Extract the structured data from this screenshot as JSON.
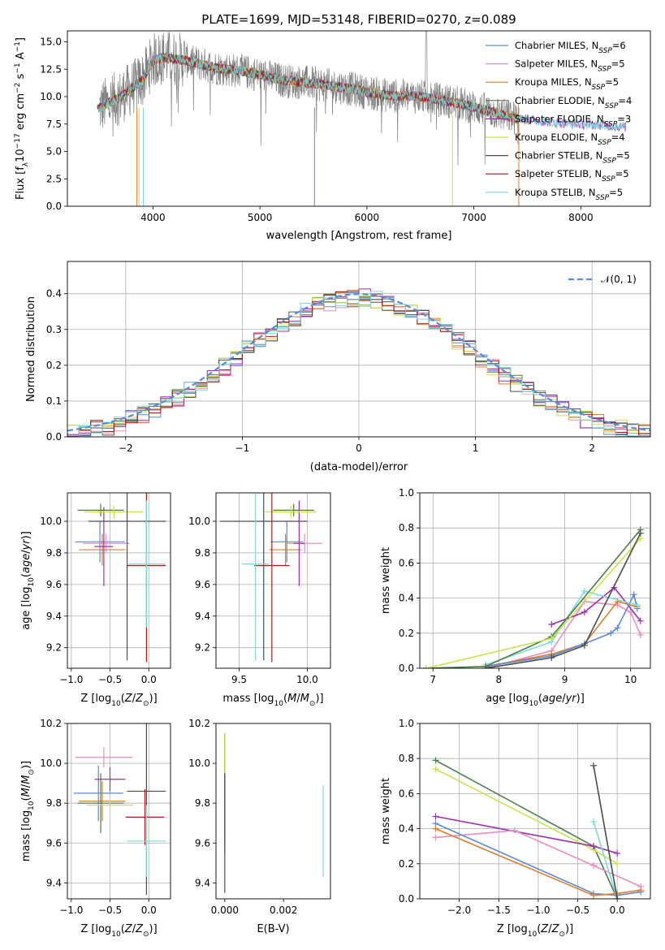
{
  "chart_data": [
    {
      "id": "spectrum",
      "type": "line",
      "title": "PLATE=1699, MJD=53148, FIBERID=0270, z=0.089",
      "xlabel": "wavelength [Angstrom, rest frame]",
      "ylabel": "Flux [f_λ 10^-17 erg cm^-2 s^-1 A^-1]",
      "xlim": [
        3200,
        8650
      ],
      "ylim": [
        0,
        16
      ],
      "xticks": [
        4000,
        5000,
        6000,
        7000,
        8000
      ],
      "yticks": [
        0.0,
        2.5,
        5.0,
        7.5,
        10.0,
        12.5,
        15.0
      ],
      "legend_position": "top-right",
      "data_color": "#808080",
      "continuum": {
        "x": [
          3500,
          3700,
          3900,
          4000,
          4100,
          4300,
          4600,
          4900,
          5000,
          5200,
          5500,
          5800,
          6000,
          6200,
          6500,
          6800,
          7100,
          7400,
          7800,
          8200,
          8400
        ],
        "y": [
          9.0,
          10.0,
          11.5,
          13.3,
          13.6,
          13.3,
          12.6,
          12.2,
          12.0,
          11.5,
          11.2,
          10.8,
          10.4,
          10.1,
          10.0,
          9.5,
          8.8,
          8.0,
          7.6,
          7.4,
          7.2
        ]
      },
      "series": [
        {
          "name": "Chabrier MILES, N_SSP=6",
          "color": "#5b8ad6"
        },
        {
          "name": "Salpeter MILES, N_SSP=5",
          "color": "#e88ec0"
        },
        {
          "name": "Kroupa MILES, N_SSP=5",
          "color": "#e07d2a"
        },
        {
          "name": "Chabrier ELODIE, N_SSP=4",
          "color": "#4a7f4a"
        },
        {
          "name": "Salpeter ELODIE, N_SSP=3",
          "color": "#9b30b0"
        },
        {
          "name": "Kroupa ELODIE, N_SSP=4",
          "color": "#c8e44a"
        },
        {
          "name": "Chabrier STELIB, N_SSP=5",
          "color": "#4d4d4d"
        },
        {
          "name": "Salpeter STELIB, N_SSP=5",
          "color": "#b01818"
        },
        {
          "name": "Kroupa STELIB, N_SSP=5",
          "color": "#7fd8d8"
        }
      ]
    },
    {
      "id": "residuals",
      "type": "line",
      "xlabel": "(data-model)/error",
      "ylabel": "Normed distribution",
      "xlim": [
        -2.5,
        2.5
      ],
      "ylim": [
        0,
        0.49
      ],
      "xticks": [
        -2,
        -1,
        0,
        1,
        2
      ],
      "yticks": [
        0.0,
        0.1,
        0.2,
        0.3,
        0.4
      ],
      "grid": true,
      "legend_position": "top-right",
      "reference": {
        "name": "𝒩(0, 1)",
        "color": "#5b8ad6",
        "style": "dashed"
      },
      "bin_width": 0.1,
      "series_colors": [
        "#5b8ad6",
        "#e88ec0",
        "#e07d2a",
        "#4a7f4a",
        "#9b30b0",
        "#c8e44a",
        "#4d4d4d",
        "#b01818",
        "#7fd8d8"
      ]
    },
    {
      "id": "z-age",
      "type": "scatter",
      "xlabel": "Z [log10(Z/Z☉)]",
      "ylabel": "age  [log10(age/yr)]",
      "xlim": [
        -1.05,
        0.28
      ],
      "ylim": [
        9.07,
        10.18
      ],
      "xticks": [
        -1.0,
        -0.5,
        0.0
      ],
      "yticks": [
        9.2,
        9.4,
        9.6,
        9.8,
        10.0
      ],
      "grid": true,
      "points": [
        {
          "x": -0.63,
          "y": 9.87,
          "xerr": 0.32,
          "yerr": 0.13,
          "color": "#5b8ad6"
        },
        {
          "x": -0.55,
          "y": 9.86,
          "xerr": 0.3,
          "yerr": 0.06,
          "color": "#e88ec0"
        },
        {
          "x": -0.6,
          "y": 9.82,
          "xerr": 0.3,
          "yerr": 0.1,
          "color": "#e07d2a"
        },
        {
          "x": -0.62,
          "y": 10.07,
          "xerr": 0.3,
          "yerr": 0.04,
          "color": "#4a7f4a"
        },
        {
          "x": -0.58,
          "y": 9.84,
          "xerr": 0.12,
          "yerr": 0.25,
          "color": "#9b30b0"
        },
        {
          "x": -0.45,
          "y": 10.06,
          "xerr": 0.38,
          "yerr": 0.04,
          "color": "#c8e44a"
        },
        {
          "x": -0.28,
          "y": 10.0,
          "xerr": 0.5,
          "yerr": 0.88,
          "color": "#4d4d4d"
        },
        {
          "x": -0.03,
          "y": 9.72,
          "xerr": 0.25,
          "yerr": 0.61,
          "color": "#b01818"
        },
        {
          "x": -0.03,
          "y": 9.73,
          "xerr": 0.25,
          "yerr": 0.4,
          "color": "#7fd8d8"
        }
      ]
    },
    {
      "id": "mass-age",
      "type": "scatter",
      "xlabel": "mass [log10(M/M☉)]",
      "ylabel": "",
      "xlim": [
        9.33,
        10.17
      ],
      "ylim": [
        9.07,
        10.18
      ],
      "xticks": [
        9.5,
        10.0
      ],
      "yticks": [
        9.2,
        9.4,
        9.6,
        9.8,
        10.0
      ],
      "grid": true,
      "points": [
        {
          "x": 9.85,
          "y": 9.87,
          "xerr": 0.12,
          "yerr": 0.13,
          "color": "#5b8ad6"
        },
        {
          "x": 9.98,
          "y": 9.86,
          "xerr": 0.13,
          "yerr": 0.06,
          "color": "#e88ec0"
        },
        {
          "x": 9.84,
          "y": 9.82,
          "xerr": 0.12,
          "yerr": 0.1,
          "color": "#e07d2a"
        },
        {
          "x": 9.9,
          "y": 10.07,
          "xerr": 0.15,
          "yerr": 0.04,
          "color": "#4a7f4a"
        },
        {
          "x": 9.94,
          "y": 9.86,
          "xerr": 0.04,
          "yerr": 0.27,
          "color": "#9b30b0"
        },
        {
          "x": 9.88,
          "y": 10.06,
          "xerr": 0.19,
          "yerr": 0.04,
          "color": "#c8e44a"
        },
        {
          "x": 9.68,
          "y": 10.0,
          "xerr": 0.32,
          "yerr": 0.88,
          "color": "#4d4d4d"
        },
        {
          "x": 9.74,
          "y": 9.72,
          "xerr": 0.13,
          "yerr": 0.61,
          "color": "#b01818"
        },
        {
          "x": 9.62,
          "y": 9.73,
          "xerr": 0.1,
          "yerr": 0.61,
          "color": "#7fd8d8"
        }
      ]
    },
    {
      "id": "age-weight",
      "type": "line",
      "xlabel": "age  [log10(age/yr)]",
      "ylabel": "mass weight",
      "xlim": [
        6.8,
        10.3
      ],
      "ylim": [
        0,
        1.0
      ],
      "xticks": [
        7,
        8,
        9,
        10
      ],
      "yticks": [
        0.0,
        0.2,
        0.4,
        0.6,
        0.8,
        1.0
      ],
      "grid": true,
      "series": [
        {
          "color": "#e88ec0",
          "x": [
            7.8,
            8.8,
            9.3,
            9.8,
            10.0,
            10.15
          ],
          "y": [
            0.0,
            0.1,
            0.38,
            0.36,
            0.32,
            0.19
          ]
        },
        {
          "color": "#9b30b0",
          "x": [
            8.8,
            9.3,
            9.75,
            10.15
          ],
          "y": [
            0.25,
            0.32,
            0.46,
            0.27
          ]
        },
        {
          "color": "#e07d2a",
          "x": [
            7.8,
            8.8,
            9.3,
            9.8,
            10.1
          ],
          "y": [
            0.01,
            0.08,
            0.14,
            0.38,
            0.35
          ]
        },
        {
          "color": "#5b8ad6",
          "x": [
            7.8,
            8.8,
            9.3,
            9.7,
            9.8,
            10.05,
            10.1
          ],
          "y": [
            0.01,
            0.07,
            0.14,
            0.2,
            0.23,
            0.42,
            0.34
          ]
        },
        {
          "color": "#7fd8d8",
          "x": [
            7.8,
            8.8,
            9.3,
            10.1
          ],
          "y": [
            0.02,
            0.15,
            0.44,
            0.36
          ]
        },
        {
          "color": "#4a7f4a",
          "x": [
            6.9,
            7.8,
            8.8,
            10.15
          ],
          "y": [
            0.0,
            0.01,
            0.18,
            0.79
          ]
        },
        {
          "color": "#c8e44a",
          "x": [
            6.9,
            8.8,
            10.15
          ],
          "y": [
            0.0,
            0.17,
            0.74
          ]
        },
        {
          "color": "#4d4d4d",
          "x": [
            7.8,
            8.8,
            9.3,
            10.15
          ],
          "y": [
            0.0,
            0.06,
            0.13,
            0.77
          ]
        },
        {
          "color": "#b01818",
          "x": [],
          "y": []
        }
      ]
    },
    {
      "id": "z-mass",
      "type": "scatter",
      "xlabel": "Z [log10(Z/Z☉)]",
      "ylabel": "mass [log10(M/M☉)]",
      "xlim": [
        -1.05,
        0.28
      ],
      "ylim": [
        9.32,
        10.2
      ],
      "xticks": [
        -1.0,
        -0.5,
        0.0
      ],
      "yticks": [
        9.4,
        9.6,
        9.8,
        10.0,
        10.2
      ],
      "grid": true,
      "points": [
        {
          "x": -0.65,
          "y": 9.85,
          "xerr": 0.32,
          "yerr": 0.14,
          "color": "#5b8ad6"
        },
        {
          "x": -0.58,
          "y": 10.03,
          "xerr": 0.37,
          "yerr": 0.05,
          "color": "#e88ec0"
        },
        {
          "x": -0.6,
          "y": 9.81,
          "xerr": 0.3,
          "yerr": 0.1,
          "color": "#e07d2a"
        },
        {
          "x": -0.62,
          "y": 9.8,
          "xerr": 0.3,
          "yerr": 0.15,
          "color": "#4a7f4a"
        },
        {
          "x": -0.5,
          "y": 9.92,
          "xerr": 0.2,
          "yerr": 0.06,
          "color": "#9b30b0"
        },
        {
          "x": -0.5,
          "y": 9.79,
          "xerr": 0.3,
          "yerr": 0.05,
          "color": "#c8e44a"
        },
        {
          "x": -0.03,
          "y": 9.86,
          "xerr": 0.25,
          "yerr": 0.52,
          "color": "#4d4d4d"
        },
        {
          "x": -0.05,
          "y": 9.73,
          "xerr": 0.25,
          "yerr": 0.14,
          "color": "#b01818"
        },
        {
          "x": -0.03,
          "y": 9.61,
          "xerr": 0.25,
          "yerr": 0.18,
          "color": "#7fd8d8"
        }
      ]
    },
    {
      "id": "ebv-mass",
      "type": "scatter",
      "xlabel": "E(B-V)",
      "ylabel": "",
      "xlim": [
        -0.0003,
        0.0036
      ],
      "ylim": [
        9.32,
        10.2
      ],
      "xticks": [
        0.0,
        0.002
      ],
      "yticks": [
        9.4,
        9.6,
        9.8,
        10.0,
        10.2
      ],
      "points": [
        {
          "x": 0.0,
          "y": 9.85,
          "xerr": 0,
          "yerr": 0.3,
          "color": "#4a7f4a"
        },
        {
          "x": 0.0,
          "y": 9.8,
          "xerr": 0,
          "yerr": 0.2,
          "color": "#b01818"
        },
        {
          "x": 0.0,
          "y": 9.75,
          "xerr": 0,
          "yerr": 0.4,
          "color": "#4d4d4d"
        },
        {
          "x": 0.0,
          "y": 10.05,
          "xerr": 0,
          "yerr": 0.1,
          "color": "#c8e44a"
        },
        {
          "x": 0.00335,
          "y": 9.66,
          "xerr": 0,
          "yerr": 0.23,
          "color": "#7fd8d8"
        }
      ]
    },
    {
      "id": "z-weight",
      "type": "line",
      "xlabel": "Z [log10(Z/Z☉)]",
      "ylabel": "mass weight",
      "xlim": [
        -2.5,
        0.42
      ],
      "ylim": [
        0,
        1.0
      ],
      "xticks": [
        -2.0,
        -1.5,
        -1.0,
        -0.5,
        0.0
      ],
      "yticks": [
        0.0,
        0.2,
        0.4,
        0.6,
        0.8,
        1.0
      ],
      "grid": true,
      "series": [
        {
          "color": "#4a7f4a",
          "x": [
            -2.3,
            -0.3,
            0.0
          ],
          "y": [
            0.79,
            0.3,
            0.0
          ]
        },
        {
          "color": "#c8e44a",
          "x": [
            -2.3,
            -0.3,
            0.0
          ],
          "y": [
            0.74,
            0.28,
            0.2
          ]
        },
        {
          "color": "#9b30b0",
          "x": [
            -2.3,
            -0.3,
            0.0
          ],
          "y": [
            0.47,
            0.3,
            0.26
          ]
        },
        {
          "color": "#e88ec0",
          "x": [
            -2.3,
            -1.3,
            -0.3,
            0.3
          ],
          "y": [
            0.35,
            0.39,
            0.19,
            0.07
          ]
        },
        {
          "color": "#5b8ad6",
          "x": [
            -2.3,
            -0.3,
            0.0,
            0.3
          ],
          "y": [
            0.43,
            0.03,
            0.02,
            0.04
          ]
        },
        {
          "color": "#e07d2a",
          "x": [
            -2.3,
            -0.3,
            0.0,
            0.3
          ],
          "y": [
            0.4,
            0.02,
            0.03,
            0.05
          ]
        },
        {
          "color": "#7fd8d8",
          "x": [
            -0.3,
            0.0
          ],
          "y": [
            0.44,
            0.0
          ]
        },
        {
          "color": "#4d4d4d",
          "x": [
            -0.3,
            0.0
          ],
          "y": [
            0.76,
            0.0
          ]
        }
      ]
    }
  ]
}
